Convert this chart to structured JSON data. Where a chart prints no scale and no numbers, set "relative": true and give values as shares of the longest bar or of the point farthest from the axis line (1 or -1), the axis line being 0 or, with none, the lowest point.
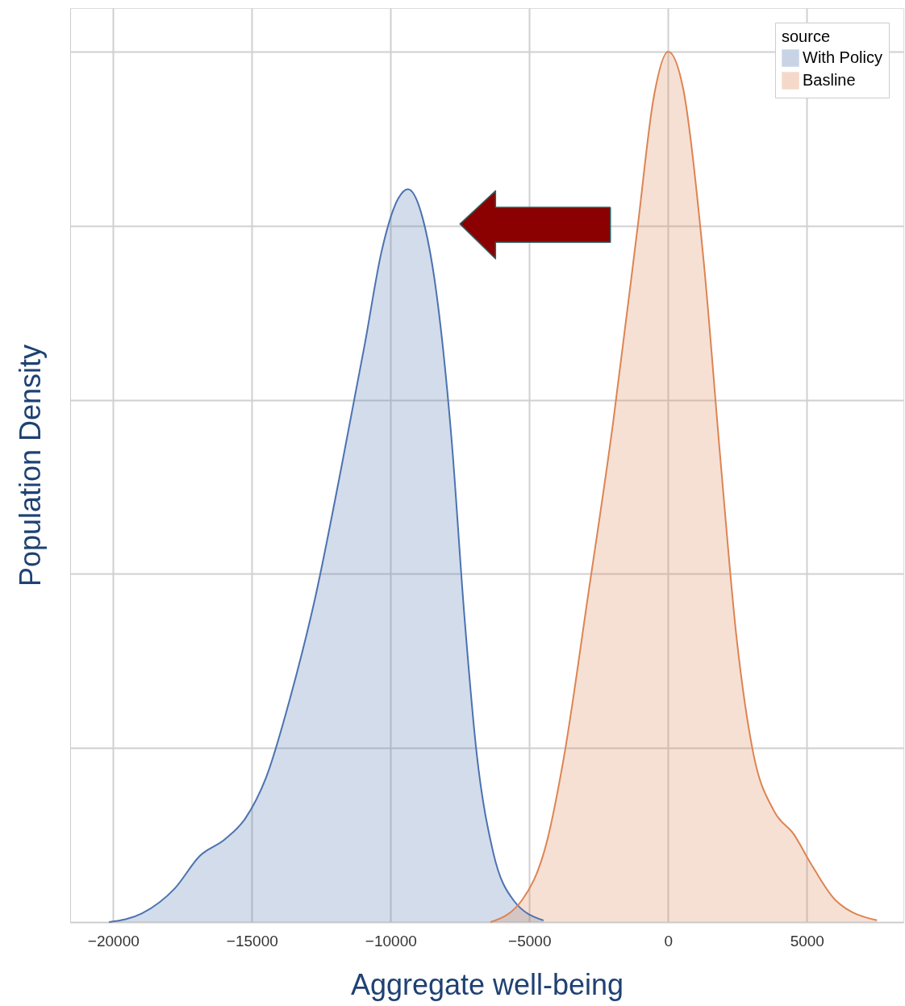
{
  "chart_data": {
    "type": "area",
    "relative": true,
    "xlabel": "Aggregate well-being",
    "ylabel": "Population Density",
    "legend_title": "source",
    "xlim": [
      -21550,
      8480
    ],
    "xticks": [
      -20000,
      -15000,
      -10000,
      -5000,
      0,
      5000
    ],
    "grid": true,
    "legend": "top right",
    "tick_labels": "x",
    "series": [
      {
        "name": "With Policy",
        "color": "#4c72b0",
        "x": [
          -20150,
          -18960,
          -17770,
          -16880,
          -15980,
          -15240,
          -14490,
          -13600,
          -12710,
          -11820,
          -10920,
          -10330,
          -9730,
          -9380,
          -8840,
          -8390,
          -7800,
          -7350,
          -6900,
          -6310,
          -5570,
          -4490
        ],
        "values": [
          0,
          0.01,
          0.039,
          0.076,
          0.095,
          0.119,
          0.166,
          0.26,
          0.374,
          0.515,
          0.666,
          0.77,
          0.831,
          0.842,
          0.808,
          0.732,
          0.553,
          0.355,
          0.194,
          0.081,
          0.025,
          0.002
        ]
      },
      {
        "name": "Basline",
        "color": "#dd8452",
        "x": [
          -6400,
          -5270,
          -4380,
          -3780,
          -2890,
          -1990,
          -1100,
          -510,
          0,
          540,
          1280,
          1880,
          2470,
          3070,
          3810,
          4550,
          5150,
          6040,
          7530
        ],
        "values": [
          0,
          0.025,
          0.091,
          0.185,
          0.374,
          0.572,
          0.798,
          0.949,
          1,
          0.958,
          0.76,
          0.534,
          0.326,
          0.194,
          0.128,
          0.1,
          0.067,
          0.025,
          0.002
        ]
      }
    ]
  }
}
